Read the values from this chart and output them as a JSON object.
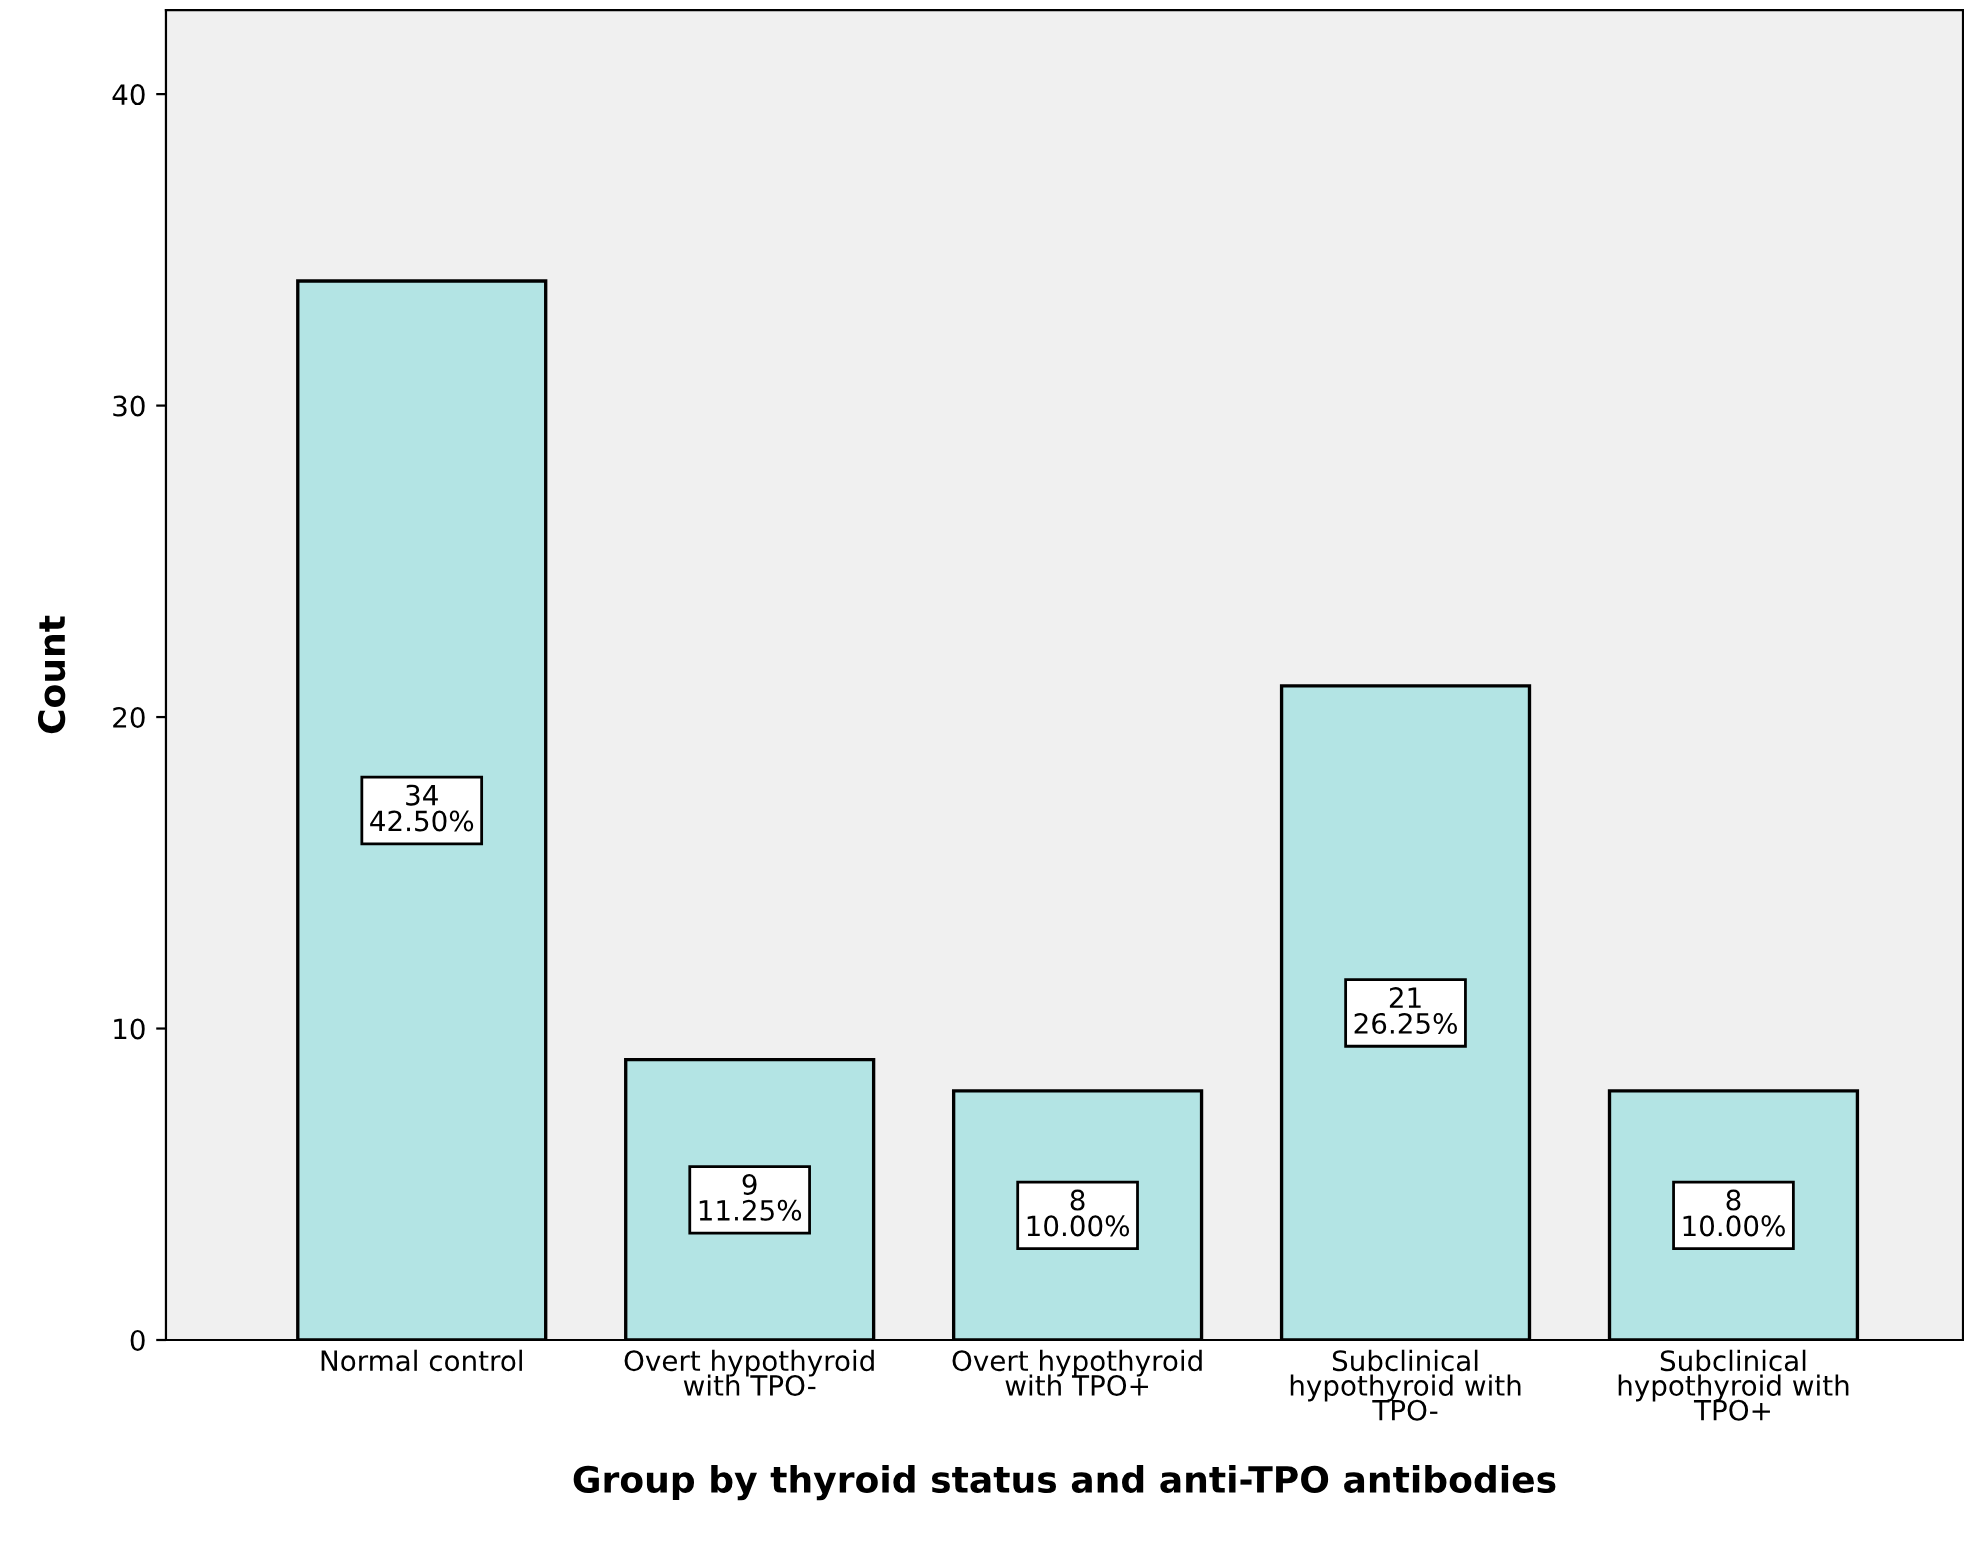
{
  "chart_data": {
    "type": "bar",
    "xlabel": "Group by thyroid status and anti-TPO antibodies",
    "ylabel": "Count",
    "categories": [
      "Normal control",
      "Overt hypothyroid\nwith TPO-",
      "Overt hypothyroid\nwith TPO+",
      "Subclinical\nhypothyroid with\nTPO-",
      "Subclinical\nhypothyroid with\nTPO+"
    ],
    "values": [
      34,
      9,
      8,
      21,
      8
    ],
    "color": "#b3e4e4",
    "value_labels": [
      "34\n42.50%",
      "9\n11.25%",
      "8\n10.00%",
      "21\n26.25%",
      "8\n10.00%"
    ],
    "ylim": [
      0,
      42.7
    ],
    "yticks": [
      0,
      10,
      20,
      30,
      40
    ],
    "grid": false,
    "legend": false
  }
}
